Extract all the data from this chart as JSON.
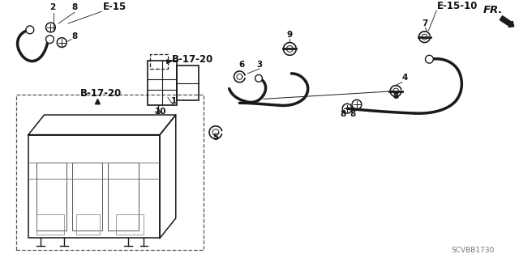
{
  "bg_color": "#ffffff",
  "diagram_code": "SCVBB1730",
  "line_color": "#1a1a1a",
  "text_color": "#111111",
  "labels": {
    "E15": "E-15",
    "B1720_top": "B-17-20",
    "B1720_left": "B-17-20",
    "E1510": "E-15-10",
    "FR": "FR."
  },
  "numbers": {
    "n1": "1",
    "n2": "2",
    "n3": "3",
    "n4": "4",
    "n5": "5",
    "n6": "6",
    "n7": "7",
    "n8": "8",
    "n9": "9",
    "n10": "10"
  }
}
